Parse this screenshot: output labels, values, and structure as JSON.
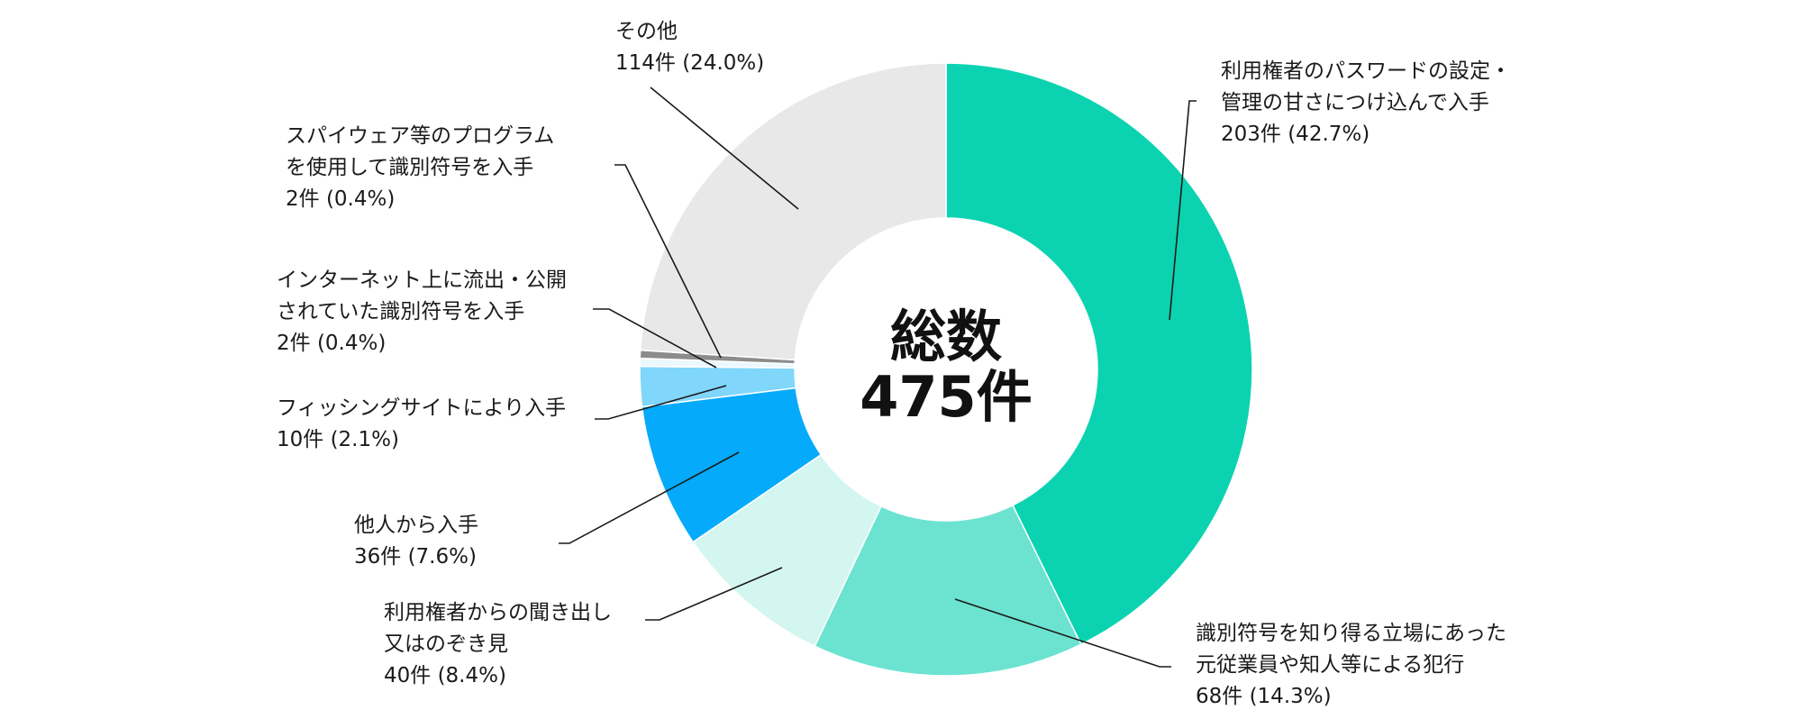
{
  "chart_data": {
    "type": "pie",
    "center_title": "総数",
    "center_value": "475件",
    "slices": [
      {
        "label_lines": [
          "利用権者のパスワードの設定・",
          "管理の甘さにつけ込んで入手"
        ],
        "value_text": "203件 (42.7%)",
        "value": 203,
        "percent": 42.7,
        "color": "#0bd3b1"
      },
      {
        "label_lines": [
          "識別符号を知り得る立場にあった",
          "元従業員や知人等による犯行"
        ],
        "value_text": "68件 (14.3%)",
        "value": 68,
        "percent": 14.3,
        "color": "#6be3d0"
      },
      {
        "label_lines": [
          "利用権者からの聞き出し",
          "又はのぞき見"
        ],
        "value_text": "40件 (8.4%)",
        "value": 40,
        "percent": 8.4,
        "color": "#d3f6f0"
      },
      {
        "label_lines": [
          "他人から入手"
        ],
        "value_text": "36件 (7.6%)",
        "value": 36,
        "percent": 7.6,
        "color": "#05aafb"
      },
      {
        "label_lines": [
          "フィッシングサイトにより入手"
        ],
        "value_text": "10件 (2.1%)",
        "value": 10,
        "percent": 2.1,
        "color": "#80d6fb"
      },
      {
        "label_lines": [
          "インターネット上に流出・公開",
          "されていた識別符号を入手"
        ],
        "value_text": "2件 (0.4%)",
        "value": 2,
        "percent": 0.4,
        "color": "#ebf8fe"
      },
      {
        "label_lines": [
          "スパイウェア等のプログラム",
          "を使用して識別符号を入手"
        ],
        "value_text": "2件 (0.4%)",
        "value": 2,
        "percent": 0.4,
        "color": "#8c8c8c"
      },
      {
        "label_lines": [
          "その他"
        ],
        "value_text": "114件 (24.0%)",
        "value": 114,
        "percent": 24.0,
        "color": "#e8e8e8"
      }
    ]
  }
}
